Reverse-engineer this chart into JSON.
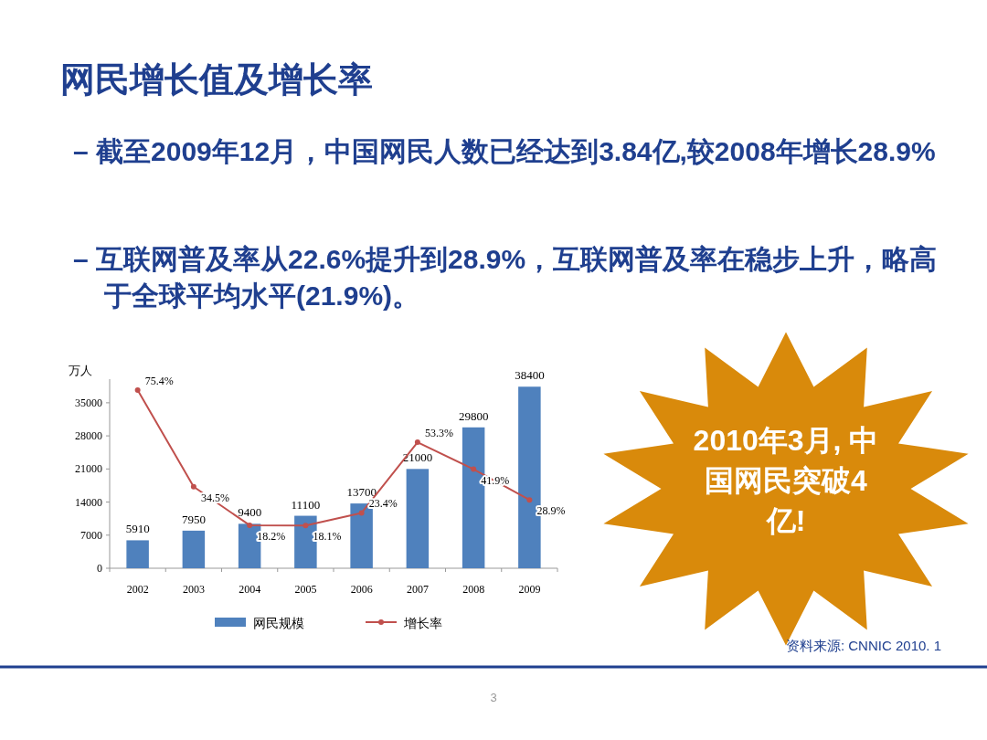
{
  "chart_data": {
    "type": "bar",
    "title": "网民增长值及增长率",
    "ylabel": "万人",
    "categories": [
      "2002",
      "2003",
      "2004",
      "2005",
      "2006",
      "2007",
      "2008",
      "2009"
    ],
    "series": [
      {
        "name": "网民规模",
        "color": "#4f81bd",
        "values": [
          5910,
          7950,
          9400,
          11100,
          13700,
          21000,
          29800,
          38400
        ],
        "value_labels": [
          "5910",
          "7950",
          "9400",
          "11100",
          "13700",
          "21000",
          "29800",
          "38400"
        ]
      },
      {
        "name": "增长率",
        "type": "line",
        "axis": "y2",
        "color": "#c0504d",
        "marker": "circle",
        "values": [
          75.4,
          34.5,
          18.2,
          18.1,
          23.4,
          53.3,
          41.9,
          28.9
        ],
        "value_labels": [
          "75.4%",
          "34.5%",
          "18.2%",
          "18.1%",
          "23.4%",
          "53.3%",
          "41.9%",
          "28.9%"
        ]
      }
    ],
    "ylim": [
      0,
      40000
    ],
    "yticks": [
      0,
      7000,
      14000,
      21000,
      28000,
      35000
    ],
    "y2lim": [
      0,
      80
    ],
    "grid": false,
    "legend": "bottom",
    "annotations": [
      "– 截至2009年12月，中国网民人数已经达到3.84亿,较2008年增长28.9%",
      "– 互联网普及率从22.6%提升到28.9%，互联网普及率在稳步上升，略高于全球平均水平(21.9%)。",
      "2010年3月, 中国网民突破4亿!",
      "资料来源: CNNIC 2010. 1",
      "3"
    ]
  }
}
